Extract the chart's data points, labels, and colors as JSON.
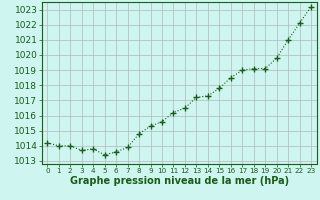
{
  "x": [
    0,
    1,
    2,
    3,
    4,
    5,
    6,
    7,
    8,
    9,
    10,
    11,
    12,
    13,
    14,
    15,
    16,
    17,
    18,
    19,
    20,
    21,
    22,
    23
  ],
  "y": [
    1014.2,
    1014.0,
    1014.0,
    1013.7,
    1013.8,
    1013.4,
    1013.6,
    1013.9,
    1014.8,
    1015.3,
    1015.6,
    1016.2,
    1016.5,
    1017.2,
    1017.3,
    1017.8,
    1018.5,
    1019.0,
    1019.1,
    1019.1,
    1019.8,
    1021.0,
    1022.1,
    1023.2
  ],
  "ylim": [
    1012.8,
    1023.5
  ],
  "yticks": [
    1013,
    1014,
    1015,
    1016,
    1017,
    1018,
    1019,
    1020,
    1021,
    1022,
    1023
  ],
  "xlim": [
    -0.5,
    23.5
  ],
  "xticks": [
    0,
    1,
    2,
    3,
    4,
    5,
    6,
    7,
    8,
    9,
    10,
    11,
    12,
    13,
    14,
    15,
    16,
    17,
    18,
    19,
    20,
    21,
    22,
    23
  ],
  "line_color": "#1a5c1a",
  "marker_color": "#1a5c1a",
  "bg_color": "#cef5f0",
  "grid_color": "#b0b8b8",
  "xlabel": "Graphe pression niveau de la mer (hPa)",
  "xlabel_color": "#1a5c1a",
  "tick_color": "#1a5c1a",
  "ytick_fontsize": 6.5,
  "xtick_fontsize": 5.2,
  "xlabel_fontsize": 7.0
}
